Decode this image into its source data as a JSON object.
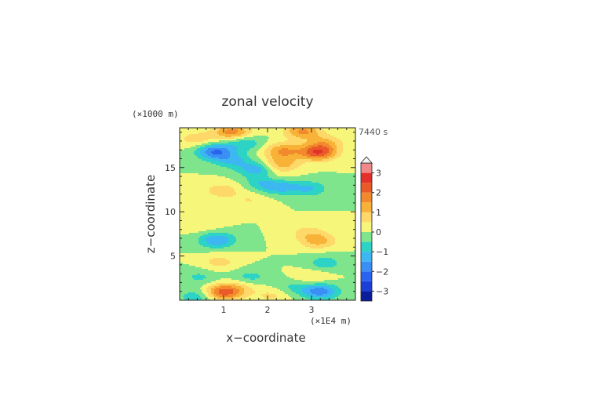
{
  "chart_data": {
    "type": "heatmap",
    "title": "zonal velocity",
    "time_label": "7440 s",
    "xlabel": "x−coordinate",
    "ylabel": "z−coordinate",
    "x_unit": "(×1E4 m)",
    "y_unit": "(×1000 m)",
    "xlim": [
      0,
      4
    ],
    "ylim": [
      0,
      19.5
    ],
    "x_ticks": [
      1,
      2,
      3
    ],
    "x_tick_labels": [
      "1",
      "2",
      "3"
    ],
    "y_ticks": [
      5,
      10,
      15
    ],
    "y_tick_labels": [
      "5",
      "10",
      "15"
    ],
    "colorbar": {
      "range": [
        -3.5,
        3.5
      ],
      "levels": [
        -3.5,
        -3,
        -2.5,
        -2,
        -1.5,
        -1,
        -0.5,
        0,
        0.5,
        1,
        1.5,
        2,
        2.5,
        3,
        3.5
      ],
      "colors": [
        "#0a1e9c",
        "#1c3fd8",
        "#2a63ee",
        "#3a8ff4",
        "#3cb7f2",
        "#2dd3c4",
        "#7fe58c",
        "#f6f67a",
        "#ffd86a",
        "#f7b237",
        "#f28a2d",
        "#ea5a28",
        "#e3302a",
        "#f08a8a",
        "#f8b6b6"
      ],
      "tick_values": [
        3,
        2,
        1,
        0,
        -1,
        -2,
        -3
      ],
      "tick_labels": [
        "3",
        "2",
        "1",
        "0",
        "−1",
        "−2",
        "−3"
      ],
      "extend": "max"
    },
    "field_features": [
      {
        "x": 1.2,
        "z": 19.0,
        "value": 1.8
      },
      {
        "x": 2.8,
        "z": 19.1,
        "value": 1.6
      },
      {
        "x": 0.8,
        "z": 16.8,
        "value": -2.0
      },
      {
        "x": 1.2,
        "z": 15.8,
        "value": -1.0
      },
      {
        "x": 1.75,
        "z": 14.8,
        "value": -1.3
      },
      {
        "x": 1.95,
        "z": 13.3,
        "value": -1.2
      },
      {
        "x": 1.45,
        "z": 17.8,
        "value": -1.0
      },
      {
        "x": 0.4,
        "z": 18.2,
        "value": 0.8
      },
      {
        "x": 2.35,
        "z": 16.9,
        "value": 1.5
      },
      {
        "x": 2.3,
        "z": 15.4,
        "value": 1.3
      },
      {
        "x": 3.15,
        "z": 16.7,
        "value": 2.4
      },
      {
        "x": 3.3,
        "z": 17.8,
        "value": 1.0
      },
      {
        "x": 2.15,
        "z": 13.6,
        "value": 0.9
      },
      {
        "x": 2.3,
        "z": 12.9,
        "value": -1.3
      },
      {
        "x": 2.95,
        "z": 12.6,
        "value": -1.0
      },
      {
        "x": 0.95,
        "z": 12.4,
        "value": 0.8
      },
      {
        "x": 1.6,
        "z": 11.3,
        "value": 0.5
      },
      {
        "x": 0.5,
        "z": 8.6,
        "value": 0.5
      },
      {
        "x": 0.85,
        "z": 6.8,
        "value": -1.5
      },
      {
        "x": 3.15,
        "z": 6.7,
        "value": 1.2
      },
      {
        "x": 2.9,
        "z": 7.7,
        "value": 0.6
      },
      {
        "x": 0.9,
        "z": 4.3,
        "value": 0.7
      },
      {
        "x": 3.3,
        "z": 4.2,
        "value": -0.8
      },
      {
        "x": 0.45,
        "z": 2.6,
        "value": -0.6
      },
      {
        "x": 1.6,
        "z": 2.6,
        "value": -0.7
      },
      {
        "x": 1.4,
        "z": 1.5,
        "value": 0.5
      },
      {
        "x": 3.0,
        "z": 2.6,
        "value": 0.6
      },
      {
        "x": 2.6,
        "z": 1.5,
        "value": -0.6
      },
      {
        "x": 1.0,
        "z": 0.9,
        "value": 2.3
      },
      {
        "x": 3.2,
        "z": 1.0,
        "value": -1.8
      },
      {
        "x": 0.4,
        "z": 0.4,
        "value": -0.9
      },
      {
        "x": 2.1,
        "z": 0.5,
        "value": 0.6
      }
    ]
  }
}
